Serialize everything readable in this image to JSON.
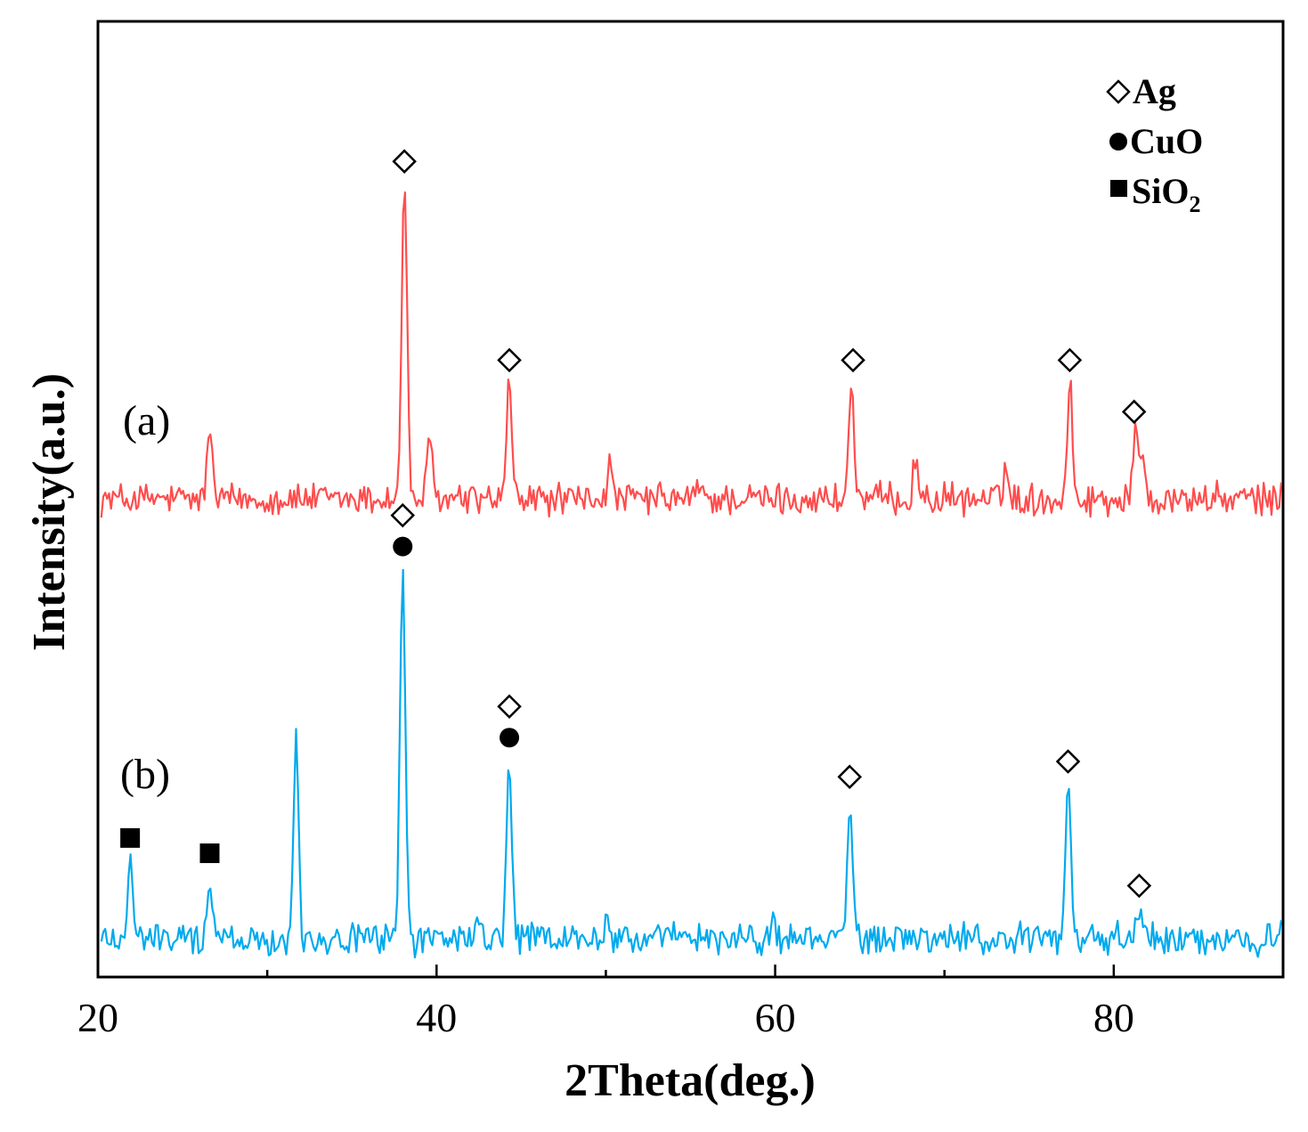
{
  "chart_data": {
    "type": "line",
    "title": "",
    "xlabel": "2Theta(deg.)",
    "ylabel": "Intensity(a.u.)",
    "xlim": [
      20,
      90
    ],
    "ylim": [
      0,
      1
    ],
    "xticks": [
      20,
      40,
      60,
      80
    ],
    "grid": false,
    "legend_position": "top-right",
    "legend": [
      {
        "marker": "open-diamond",
        "label": "Ag"
      },
      {
        "marker": "filled-circle",
        "label": "CuO"
      },
      {
        "marker": "filled-square",
        "label": "SiO",
        "subscript": "2"
      }
    ],
    "series": [
      {
        "name": "(a)",
        "color": "#ff4d4d",
        "baseline": 0.5,
        "peaks": [
          {
            "x": 26.6,
            "height": 0.077
          },
          {
            "x": 38.1,
            "height": 0.333
          },
          {
            "x": 39.6,
            "height": 0.063
          },
          {
            "x": 44.3,
            "height": 0.125
          },
          {
            "x": 50.2,
            "height": 0.033
          },
          {
            "x": 55.5,
            "height": 0.015
          },
          {
            "x": 64.5,
            "height": 0.125
          },
          {
            "x": 68.3,
            "height": 0.043
          },
          {
            "x": 73.6,
            "height": 0.035
          },
          {
            "x": 77.4,
            "height": 0.125
          },
          {
            "x": 81.3,
            "height": 0.071
          },
          {
            "x": 81.7,
            "height": 0.055
          }
        ],
        "markers": [
          {
            "x": 38.1,
            "symbols": [
              "open-diamond"
            ]
          },
          {
            "x": 44.3,
            "symbols": [
              "open-diamond"
            ]
          },
          {
            "x": 64.6,
            "symbols": [
              "open-diamond"
            ]
          },
          {
            "x": 77.4,
            "symbols": [
              "open-diamond"
            ]
          },
          {
            "x": 81.2,
            "symbols": [
              "open-diamond"
            ]
          }
        ]
      },
      {
        "name": "(b)",
        "color": "#00aaee",
        "baseline": 0.04,
        "peaks": [
          {
            "x": 21.9,
            "height": 0.085
          },
          {
            "x": 26.6,
            "height": 0.069
          },
          {
            "x": 31.7,
            "height": 0.207
          },
          {
            "x": 38.0,
            "height": 0.39
          },
          {
            "x": 42.5,
            "height": 0.018
          },
          {
            "x": 44.3,
            "height": 0.19
          },
          {
            "x": 50.1,
            "height": 0.018
          },
          {
            "x": 59.8,
            "height": 0.02
          },
          {
            "x": 64.4,
            "height": 0.149
          },
          {
            "x": 77.3,
            "height": 0.165
          },
          {
            "x": 81.5,
            "height": 0.035
          }
        ],
        "markers": [
          {
            "x": 21.9,
            "symbols": [
              "filled-square"
            ]
          },
          {
            "x": 26.6,
            "symbols": [
              "filled-square"
            ]
          },
          {
            "x": 38.0,
            "symbols": [
              "open-diamond",
              "filled-circle"
            ]
          },
          {
            "x": 44.3,
            "symbols": [
              "open-diamond",
              "filled-circle"
            ]
          },
          {
            "x": 64.4,
            "symbols": [
              "open-diamond"
            ]
          },
          {
            "x": 77.3,
            "symbols": [
              "open-diamond"
            ]
          },
          {
            "x": 81.5,
            "symbols": [
              "open-diamond"
            ]
          }
        ]
      }
    ]
  }
}
